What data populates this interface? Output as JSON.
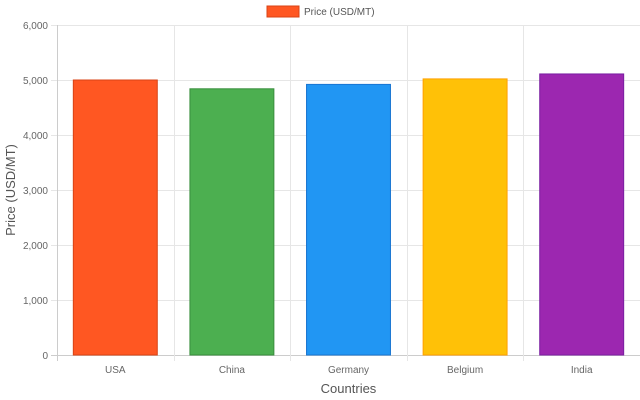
{
  "chart_data": {
    "type": "bar",
    "categories": [
      "USA",
      "China",
      "Germany",
      "Belgium",
      "India"
    ],
    "series": [
      {
        "name": "Price (USD/MT)",
        "values": [
          5000,
          4840,
          4920,
          5020,
          5110
        ],
        "colors": [
          "#ff5722",
          "#4caf50",
          "#2196f3",
          "#ffc107",
          "#9c27b0"
        ],
        "border_colors": [
          "#d84315",
          "#388e3c",
          "#1976d2",
          "#ffa000",
          "#7b1fa2"
        ]
      }
    ],
    "xlabel": "Countries",
    "ylabel": "Price (USD/MT)",
    "ylim": [
      0,
      6000
    ],
    "yticks": [
      0,
      1000,
      2000,
      3000,
      4000,
      5000,
      6000
    ],
    "ytick_labels": [
      "0",
      "1,000",
      "2,000",
      "3,000",
      "4,000",
      "5,000",
      "6,000"
    ],
    "grid": true,
    "legend_position": "top-center",
    "legend_label": "Price (USD/MT)",
    "legend_color": "#ff5722",
    "legend_border": "#d84315"
  }
}
